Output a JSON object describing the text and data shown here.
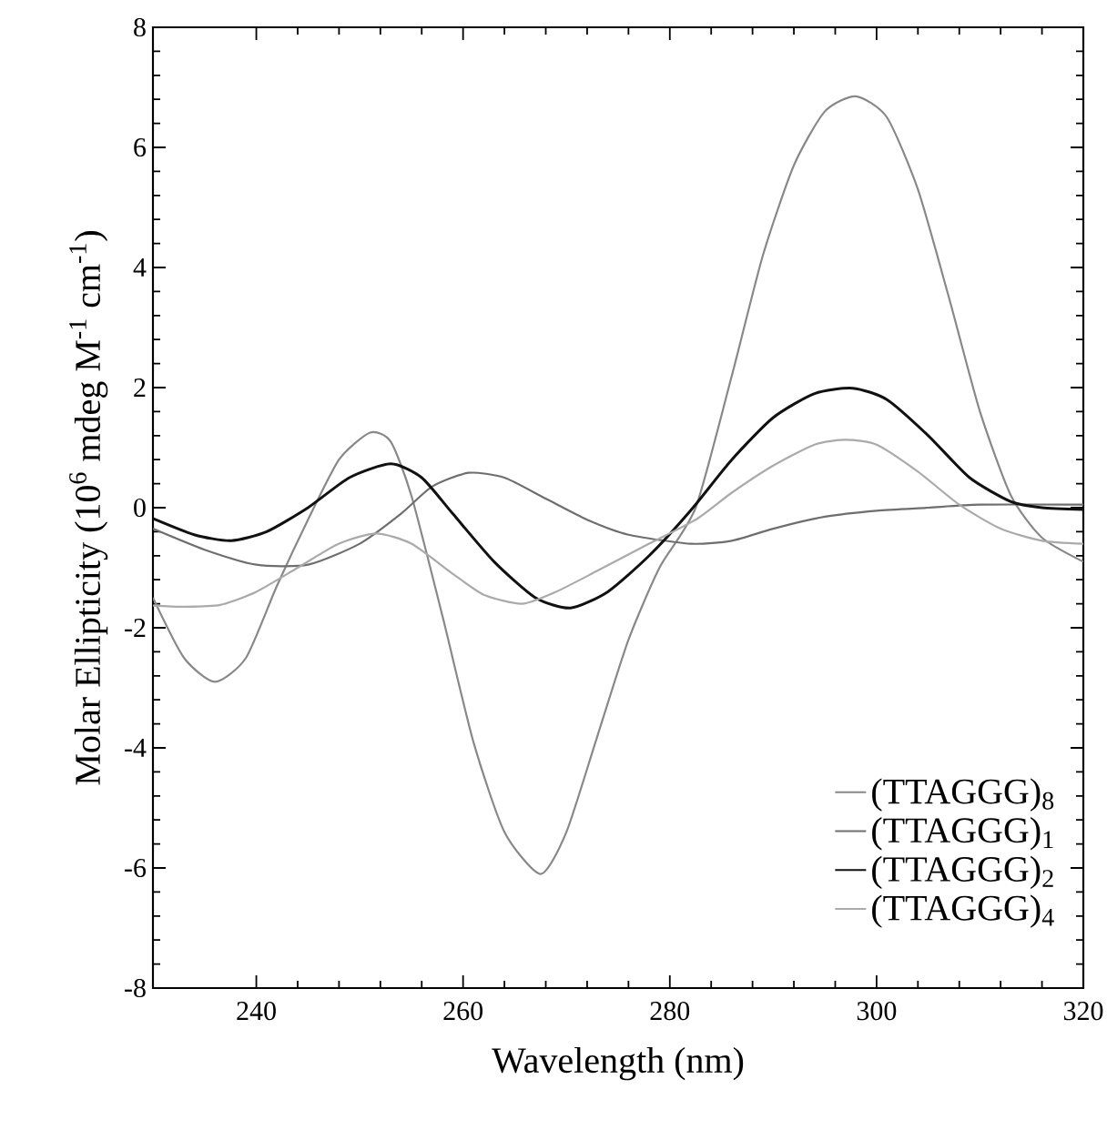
{
  "chart_data": {
    "type": "line",
    "xlabel": "Wavelength (nm)",
    "ylabel": "Molar Ellipticity (10$^{6}$ mdeg M$^{-1}$ cm$^{-1}$)",
    "xlim": [
      230,
      320
    ],
    "ylim": [
      -8,
      8
    ],
    "xticks": [
      240,
      260,
      280,
      300,
      320
    ],
    "yticks": [
      -8,
      -6,
      -4,
      -2,
      0,
      2,
      4,
      6,
      8
    ],
    "legend": "bottom right",
    "grid": false,
    "series": [
      {
        "name": "(TTAGGG)$_{8}$",
        "color": "#888888",
        "x": [
          230,
          233,
          236,
          239,
          242,
          245,
          248,
          251,
          253,
          255,
          258,
          261,
          264,
          267.5,
          270,
          273,
          276,
          279,
          282.5,
          286,
          289,
          292,
          295,
          298,
          301,
          304,
          307,
          310,
          313,
          316,
          320
        ],
        "values": [
          -1.5,
          -2.5,
          -2.9,
          -2.5,
          -1.3,
          -0.2,
          0.8,
          1.25,
          1.1,
          0.2,
          -1.8,
          -3.9,
          -5.4,
          -6.1,
          -5.4,
          -3.8,
          -2.2,
          -1.0,
          0,
          2.2,
          4.2,
          5.7,
          6.6,
          6.85,
          6.5,
          5.3,
          3.5,
          1.6,
          0.2,
          -0.5,
          -0.9
        ]
      },
      {
        "name": "(TTAGGG)$_{1}$",
        "color": "#6e6e6e",
        "x": [
          230,
          235,
          240,
          245,
          250,
          254,
          257,
          260.5,
          264,
          268,
          272,
          276,
          282,
          286,
          290,
          295,
          300,
          305,
          310,
          320
        ],
        "values": [
          -0.35,
          -0.7,
          -0.95,
          -0.95,
          -0.6,
          -0.1,
          0.35,
          0.58,
          0.5,
          0.15,
          -0.2,
          -0.45,
          -0.6,
          -0.55,
          -0.35,
          -0.15,
          -0.05,
          0.0,
          0.05,
          0.05
        ]
      },
      {
        "name": "(TTAGGG)$_{2}$",
        "color": "#111111",
        "x": [
          230,
          234,
          237.5,
          241,
          245,
          249,
          253,
          256,
          259,
          263,
          267,
          270.4,
          274,
          278,
          282,
          286,
          290,
          294,
          297.7,
          301,
          305,
          309,
          313,
          316,
          320
        ],
        "values": [
          -0.18,
          -0.45,
          -0.55,
          -0.4,
          0.0,
          0.5,
          0.73,
          0.5,
          -0.1,
          -0.9,
          -1.5,
          -1.67,
          -1.4,
          -0.8,
          -0.05,
          0.8,
          1.5,
          1.9,
          1.99,
          1.8,
          1.2,
          0.5,
          0.1,
          0.0,
          -0.03
        ]
      },
      {
        "name": "(TTAGGG)$_{4}$",
        "color": "#aaaaaa",
        "x": [
          230,
          233,
          236.5,
          240,
          244,
          248,
          251.6,
          255,
          259,
          262,
          265.7,
          269,
          273,
          278,
          282.5,
          286,
          290,
          294,
          297,
          300,
          304,
          308,
          312,
          316,
          320
        ],
        "values": [
          -1.63,
          -1.65,
          -1.62,
          -1.4,
          -1.0,
          -0.6,
          -0.43,
          -0.6,
          -1.1,
          -1.45,
          -1.6,
          -1.4,
          -1.05,
          -0.6,
          -0.2,
          0.25,
          0.7,
          1.05,
          1.13,
          1.05,
          0.6,
          0.05,
          -0.35,
          -0.55,
          -0.6
        ]
      }
    ]
  }
}
